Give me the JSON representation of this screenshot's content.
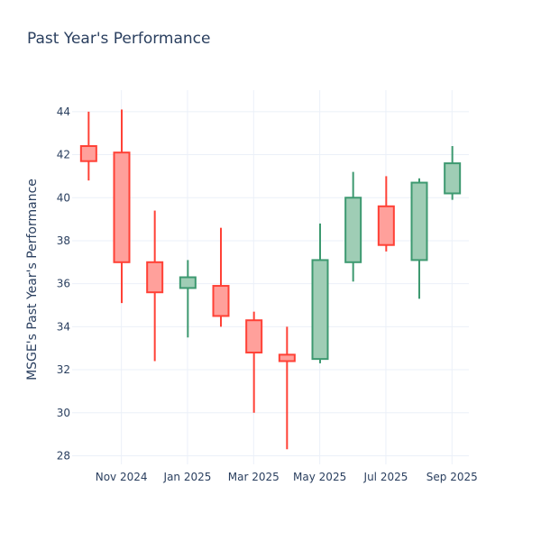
{
  "chart_data": {
    "type": "candlestick",
    "title": "Past Year's Performance",
    "xlabel": "",
    "ylabel": "MSGE's Past Year's Performance",
    "ylim": [
      27.6,
      45.0
    ],
    "yticks": [
      28,
      30,
      32,
      34,
      36,
      38,
      40,
      42,
      44
    ],
    "xticks": [
      {
        "label": "Nov 2024",
        "month": 1
      },
      {
        "label": "Jan 2025",
        "month": 3
      },
      {
        "label": "Mar 2025",
        "month": 5
      },
      {
        "label": "May 2025",
        "month": 7
      },
      {
        "label": "Jul 2025",
        "month": 9
      },
      {
        "label": "Sep 2025",
        "month": 11
      }
    ],
    "xlim": [
      -0.5,
      11.5
    ],
    "grid": true,
    "colors": {
      "increasing": "#3d9970",
      "increasing_fill": "#9fcdb5",
      "decreasing": "#ff4136",
      "decreasing_fill": "#ffa09b",
      "grid": "#ebf0f8",
      "text": "#2a3f5f"
    },
    "candles": [
      {
        "period": "Oct 2024",
        "open": 42.4,
        "high": 44.0,
        "low": 40.8,
        "close": 41.7
      },
      {
        "period": "Nov 2024",
        "open": 42.1,
        "high": 44.1,
        "low": 35.1,
        "close": 37.0
      },
      {
        "period": "Dec 2024",
        "open": 37.0,
        "high": 39.4,
        "low": 32.4,
        "close": 35.6
      },
      {
        "period": "Jan 2025",
        "open": 35.8,
        "high": 37.1,
        "low": 33.5,
        "close": 36.3
      },
      {
        "period": "Feb 2025",
        "open": 35.9,
        "high": 38.6,
        "low": 34.0,
        "close": 34.5
      },
      {
        "period": "Mar 2025",
        "open": 34.3,
        "high": 34.7,
        "low": 30.0,
        "close": 32.8
      },
      {
        "period": "Apr 2025",
        "open": 32.7,
        "high": 34.0,
        "low": 28.3,
        "close": 32.4
      },
      {
        "period": "May 2025",
        "open": 32.5,
        "high": 38.8,
        "low": 32.3,
        "close": 37.1
      },
      {
        "period": "Jun 2025",
        "open": 37.0,
        "high": 41.2,
        "low": 36.1,
        "close": 40.0
      },
      {
        "period": "Jul 2025",
        "open": 39.6,
        "high": 41.0,
        "low": 37.5,
        "close": 37.8
      },
      {
        "period": "Aug 2025",
        "open": 37.1,
        "high": 40.9,
        "low": 35.3,
        "close": 40.7
      },
      {
        "period": "Sep 2025",
        "open": 40.2,
        "high": 42.4,
        "low": 39.9,
        "close": 41.6
      }
    ]
  }
}
